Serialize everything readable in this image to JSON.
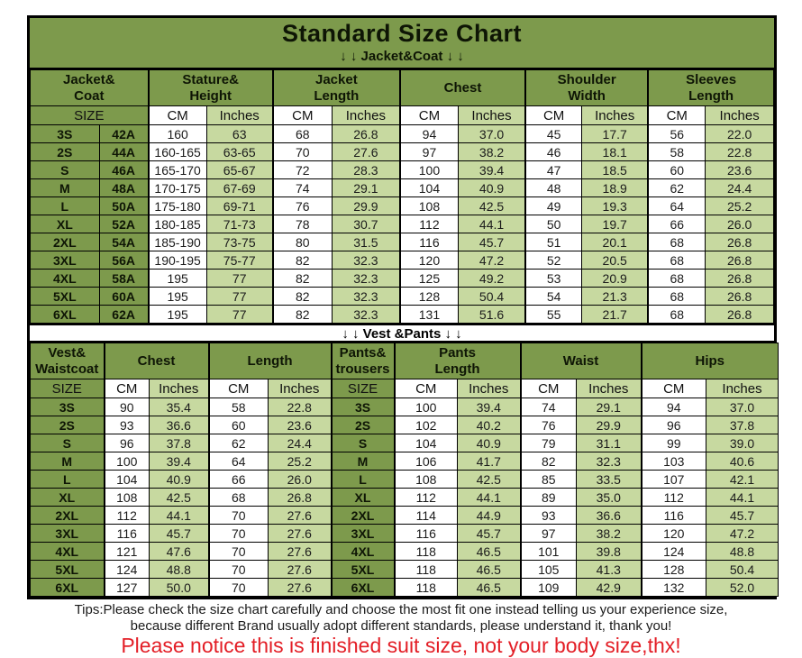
{
  "header": {
    "title": "Standard Size Chart",
    "jacket_banner": "↓ ↓  Jacket&Coat ↓ ↓",
    "vest_banner": "↓ ↓  Vest &Pants ↓ ↓"
  },
  "footer": {
    "tips_line1": "Tips:Please check the size chart carefully and choose the most fit one instead telling us your experience size,",
    "tips_line2": "because different Brand usually adopt different standards, please understand it, thank you!",
    "notice": "Please notice this is finished suit size, not your body size,thx!"
  },
  "colors": {
    "header_green": "#7d9a4c",
    "light_green": "#c7d9a0",
    "cell_white": "#ffffff",
    "border_black": "#000000",
    "notice_red": "#e31e26"
  },
  "chart_data": [
    {
      "type": "table",
      "title": "Jacket&Coat",
      "group_headers": [
        {
          "label": "Jacket&\nCoat",
          "span": 2
        },
        {
          "label": "Stature&\nHeight",
          "span": 2
        },
        {
          "label": "Jacket\nLength",
          "span": 2
        },
        {
          "label": "Chest",
          "span": 2
        },
        {
          "label": "Shoulder\nWidth",
          "span": 2
        },
        {
          "label": "Sleeves\nLength",
          "span": 2
        }
      ],
      "subheader": [
        {
          "label": "SIZE",
          "span": 2,
          "type": "size"
        },
        {
          "label": "CM",
          "span": 1,
          "type": "cm"
        },
        {
          "label": "Inches",
          "span": 1,
          "type": "in"
        },
        {
          "label": "CM",
          "span": 1,
          "type": "cm"
        },
        {
          "label": "Inches",
          "span": 1,
          "type": "in"
        },
        {
          "label": "CM",
          "span": 1,
          "type": "cm"
        },
        {
          "label": "Inches",
          "span": 1,
          "type": "in"
        },
        {
          "label": "CM",
          "span": 1,
          "type": "cm"
        },
        {
          "label": "Inches",
          "span": 1,
          "type": "in"
        },
        {
          "label": "CM",
          "span": 1,
          "type": "cm"
        },
        {
          "label": "Inches",
          "span": 1,
          "type": "in"
        }
      ],
      "rows": [
        [
          "3S",
          "42A",
          "160",
          "63",
          "68",
          "26.8",
          "94",
          "37.0",
          "45",
          "17.7",
          "56",
          "22.0"
        ],
        [
          "2S",
          "44A",
          "160-165",
          "63-65",
          "70",
          "27.6",
          "97",
          "38.2",
          "46",
          "18.1",
          "58",
          "22.8"
        ],
        [
          "S",
          "46A",
          "165-170",
          "65-67",
          "72",
          "28.3",
          "100",
          "39.4",
          "47",
          "18.5",
          "60",
          "23.6"
        ],
        [
          "M",
          "48A",
          "170-175",
          "67-69",
          "74",
          "29.1",
          "104",
          "40.9",
          "48",
          "18.9",
          "62",
          "24.4"
        ],
        [
          "L",
          "50A",
          "175-180",
          "69-71",
          "76",
          "29.9",
          "108",
          "42.5",
          "49",
          "19.3",
          "64",
          "25.2"
        ],
        [
          "XL",
          "52A",
          "180-185",
          "71-73",
          "78",
          "30.7",
          "112",
          "44.1",
          "50",
          "19.7",
          "66",
          "26.0"
        ],
        [
          "2XL",
          "54A",
          "185-190",
          "73-75",
          "80",
          "31.5",
          "116",
          "45.7",
          "51",
          "20.1",
          "68",
          "26.8"
        ],
        [
          "3XL",
          "56A",
          "190-195",
          "75-77",
          "82",
          "32.3",
          "120",
          "47.2",
          "52",
          "20.5",
          "68",
          "26.8"
        ],
        [
          "4XL",
          "58A",
          "195",
          "77",
          "82",
          "32.3",
          "125",
          "49.2",
          "53",
          "20.9",
          "68",
          "26.8"
        ],
        [
          "5XL",
          "60A",
          "195",
          "77",
          "82",
          "32.3",
          "128",
          "50.4",
          "54",
          "21.3",
          "68",
          "26.8"
        ],
        [
          "6XL",
          "62A",
          "195",
          "77",
          "82",
          "32.3",
          "131",
          "51.6",
          "55",
          "21.7",
          "68",
          "26.8"
        ]
      ]
    },
    {
      "type": "table",
      "title": "Vest&Pants",
      "group_headers": [
        {
          "label": "Vest&\nWaistcoat",
          "span": 1
        },
        {
          "label": "Chest",
          "span": 2
        },
        {
          "label": "Length",
          "span": 2
        },
        {
          "label": "Pants&\ntrousers",
          "span": 1
        },
        {
          "label": "Pants\nLength",
          "span": 2
        },
        {
          "label": "Waist",
          "span": 2
        },
        {
          "label": "Hips",
          "span": 2
        }
      ],
      "subheader": [
        {
          "label": "SIZE",
          "span": 1,
          "type": "size"
        },
        {
          "label": "CM",
          "span": 1,
          "type": "cm"
        },
        {
          "label": "Inches",
          "span": 1,
          "type": "in"
        },
        {
          "label": "CM",
          "span": 1,
          "type": "cm"
        },
        {
          "label": "Inches",
          "span": 1,
          "type": "in"
        },
        {
          "label": "SIZE",
          "span": 1,
          "type": "size"
        },
        {
          "label": "CM",
          "span": 1,
          "type": "cm"
        },
        {
          "label": "Inches",
          "span": 1,
          "type": "in"
        },
        {
          "label": "CM",
          "span": 1,
          "type": "cm"
        },
        {
          "label": "Inches",
          "span": 1,
          "type": "in"
        },
        {
          "label": "CM",
          "span": 1,
          "type": "cm"
        },
        {
          "label": "Inches",
          "span": 1,
          "type": "in"
        }
      ],
      "rows": [
        [
          "3S",
          "90",
          "35.4",
          "58",
          "22.8",
          "3S",
          "100",
          "39.4",
          "74",
          "29.1",
          "94",
          "37.0"
        ],
        [
          "2S",
          "93",
          "36.6",
          "60",
          "23.6",
          "2S",
          "102",
          "40.2",
          "76",
          "29.9",
          "96",
          "37.8"
        ],
        [
          "S",
          "96",
          "37.8",
          "62",
          "24.4",
          "S",
          "104",
          "40.9",
          "79",
          "31.1",
          "99",
          "39.0"
        ],
        [
          "M",
          "100",
          "39.4",
          "64",
          "25.2",
          "M",
          "106",
          "41.7",
          "82",
          "32.3",
          "103",
          "40.6"
        ],
        [
          "L",
          "104",
          "40.9",
          "66",
          "26.0",
          "L",
          "108",
          "42.5",
          "85",
          "33.5",
          "107",
          "42.1"
        ],
        [
          "XL",
          "108",
          "42.5",
          "68",
          "26.8",
          "XL",
          "112",
          "44.1",
          "89",
          "35.0",
          "112",
          "44.1"
        ],
        [
          "2XL",
          "112",
          "44.1",
          "70",
          "27.6",
          "2XL",
          "114",
          "44.9",
          "93",
          "36.6",
          "116",
          "45.7"
        ],
        [
          "3XL",
          "116",
          "45.7",
          "70",
          "27.6",
          "3XL",
          "116",
          "45.7",
          "97",
          "38.2",
          "120",
          "47.2"
        ],
        [
          "4XL",
          "121",
          "47.6",
          "70",
          "27.6",
          "4XL",
          "118",
          "46.5",
          "101",
          "39.8",
          "124",
          "48.8"
        ],
        [
          "5XL",
          "124",
          "48.8",
          "70",
          "27.6",
          "5XL",
          "118",
          "46.5",
          "105",
          "41.3",
          "128",
          "50.4"
        ],
        [
          "6XL",
          "127",
          "50.0",
          "70",
          "27.6",
          "6XL",
          "118",
          "46.5",
          "109",
          "42.9",
          "132",
          "52.0"
        ]
      ]
    }
  ]
}
